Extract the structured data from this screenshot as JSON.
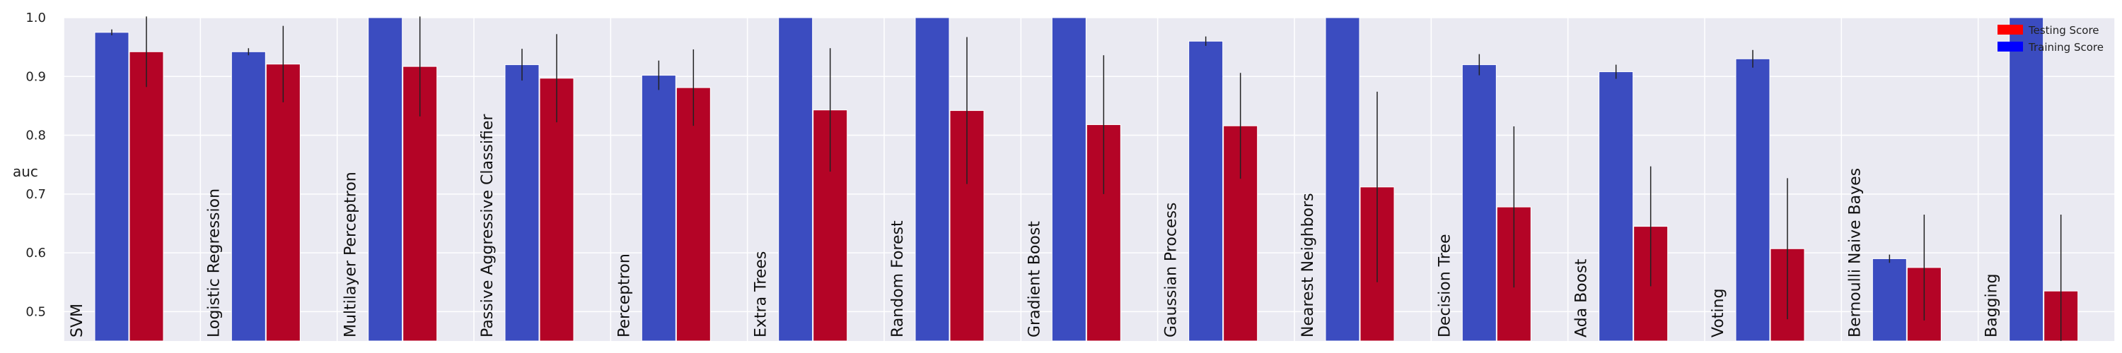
{
  "chart_data": {
    "type": "bar",
    "ylabel": "auc",
    "ylim": [
      0.45,
      1.0
    ],
    "yticks": [
      0.5,
      0.6,
      0.7,
      0.8,
      0.9,
      1.0
    ],
    "ytick_labels": [
      "0.5",
      "0.6",
      "0.7",
      "0.8",
      "0.9",
      "1.0"
    ],
    "grid": true,
    "legend_position": "top-right",
    "categories": [
      "SVM",
      "Logistic Regression",
      "Multilayer Perceptron",
      "Passive Aggressive Classifier",
      "Perceptron",
      "Extra Trees",
      "Random Forest",
      "Gradient Boost",
      "Gaussian Process",
      "Nearest Neighbors",
      "Decision Tree",
      "Ada Boost",
      "Voting",
      "Bernoulli Naive Bayes",
      "Bagging"
    ],
    "series": [
      {
        "name": "Training Score",
        "color": "#3b4cc0",
        "values": [
          0.975,
          0.942,
          1.0,
          0.92,
          0.902,
          1.0,
          1.0,
          1.0,
          0.96,
          1.0,
          0.92,
          0.908,
          0.93,
          0.59,
          1.0
        ],
        "errors": [
          0.005,
          0.006,
          0.0,
          0.027,
          0.025,
          0.0,
          0.0,
          0.0,
          0.008,
          0.0,
          0.018,
          0.012,
          0.015,
          0.007,
          0.0
        ]
      },
      {
        "name": "Testing Score",
        "color": "#b40426",
        "values": [
          0.942,
          0.921,
          0.917,
          0.897,
          0.881,
          0.843,
          0.842,
          0.818,
          0.816,
          0.712,
          0.678,
          0.645,
          0.607,
          0.575,
          0.535
        ],
        "errors": [
          0.06,
          0.065,
          0.085,
          0.075,
          0.065,
          0.105,
          0.125,
          0.118,
          0.09,
          0.162,
          0.137,
          0.102,
          0.12,
          0.09,
          0.13
        ]
      }
    ]
  }
}
